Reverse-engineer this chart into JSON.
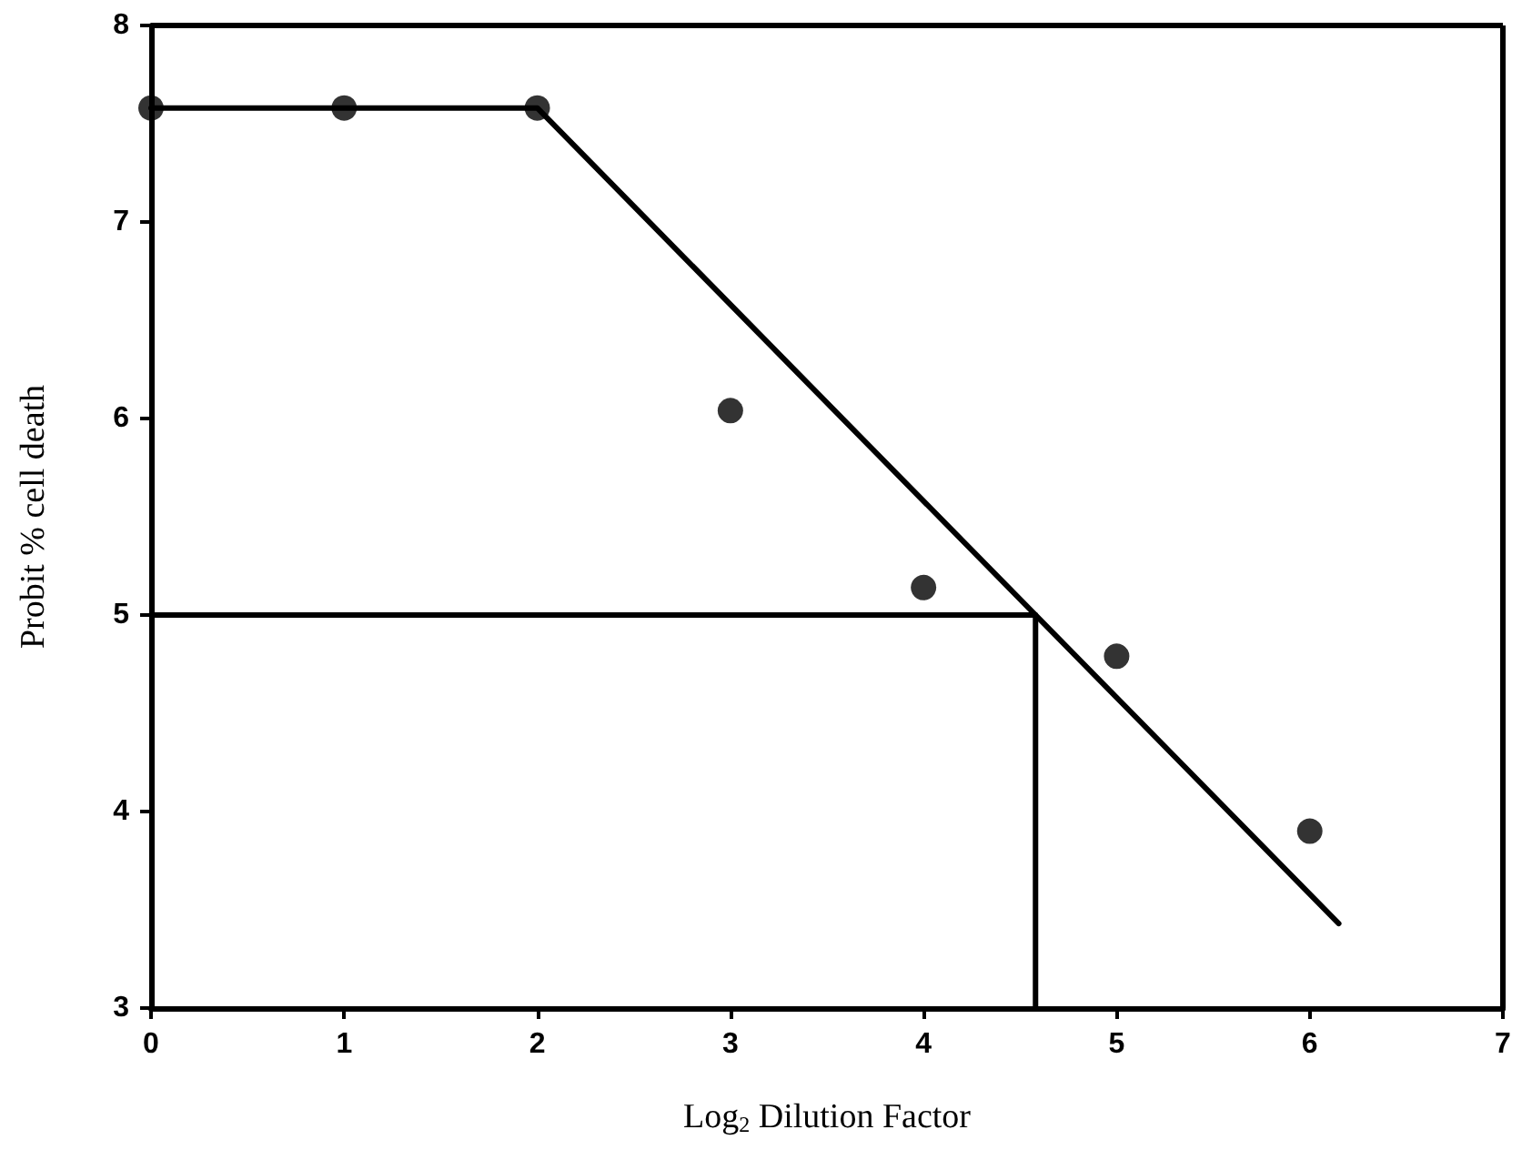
{
  "chart_data": {
    "type": "scatter",
    "xlabel": "Log$_{2}$ Dilution Factor",
    "ylabel": "Probit % cell death",
    "xlim": [
      0,
      7
    ],
    "xticks": [
      0,
      1,
      2,
      3,
      4,
      5,
      6,
      7
    ],
    "ylim": [
      3,
      8
    ],
    "yticks": [
      3,
      4,
      5,
      6,
      7,
      8
    ],
    "grid": false,
    "series": [
      {
        "type": "scatter",
        "color": "#000000",
        "marker": "circle",
        "x": [
          0,
          1,
          2,
          3,
          4,
          5,
          6
        ],
        "values": [
          7.58,
          7.58,
          7.58,
          6.04,
          5.14,
          4.79,
          3.9
        ]
      },
      {
        "type": "line",
        "color": "#000000",
        "marker": "none",
        "line_style": "solid",
        "x": [
          0,
          2,
          6.15
        ],
        "values": [
          7.58,
          7.58,
          3.43
        ]
      },
      {
        "type": "line",
        "color": "#000000",
        "marker": "none",
        "line_style": "solid",
        "x": [
          0,
          4.58,
          4.58
        ],
        "values": [
          5,
          5,
          3
        ]
      }
    ]
  }
}
